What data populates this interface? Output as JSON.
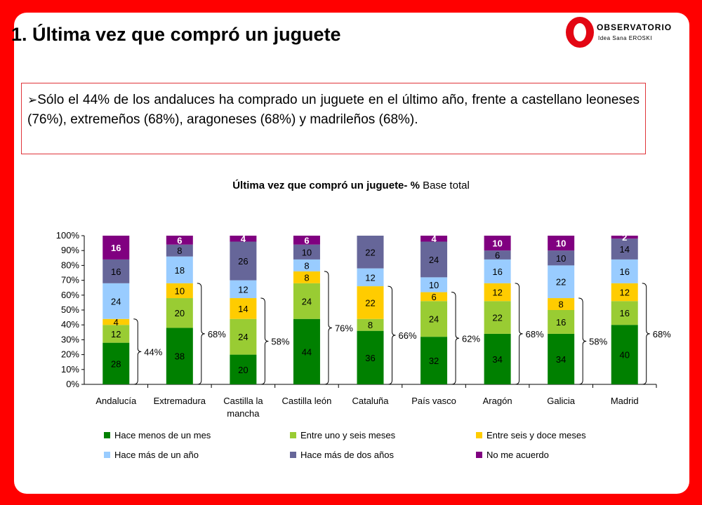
{
  "slide": {
    "title": "1. Última vez que compró un juguete",
    "logo": {
      "name": "OBSERVATORIO",
      "sub": "Idea Sana EROSKI"
    },
    "bullet_text": "Sólo el 44% de los andaluces ha comprado un juguete en el último año, frente a castellano leoneses (76%), extremeños (68%), aragoneses (68%) y madrileños (68%).",
    "chart_title_bold": "Última vez que compró un juguete- %",
    "chart_title_rest": " Base total"
  },
  "colors": {
    "background": "#ff0000",
    "accent": "#e30613",
    "series": [
      "#008000",
      "#99cc33",
      "#ffcc00",
      "#99ccff",
      "#666699",
      "#800080"
    ]
  },
  "chart_data": {
    "type": "bar",
    "stacked": true,
    "title": "Última vez que compró un juguete- % Base total",
    "ylim": [
      0,
      100
    ],
    "yticks": [
      "0%",
      "10%",
      "20%",
      "30%",
      "40%",
      "50%",
      "60%",
      "70%",
      "80%",
      "90%",
      "100%"
    ],
    "categories": [
      [
        "Andalucía"
      ],
      [
        "Extremadura"
      ],
      [
        "Castilla la",
        "mancha"
      ],
      [
        "Castilla león"
      ],
      [
        "Cataluña"
      ],
      [
        "País vasco"
      ],
      [
        "Aragón"
      ],
      [
        "Galicia"
      ],
      [
        "Madrid"
      ]
    ],
    "series": [
      {
        "name": "Hace menos de un mes",
        "values": [
          28,
          38,
          20,
          44,
          36,
          32,
          34,
          34,
          40
        ]
      },
      {
        "name": "Entre uno y seis meses",
        "values": [
          12,
          20,
          24,
          24,
          8,
          24,
          22,
          16,
          16
        ]
      },
      {
        "name": "Entre seis y doce meses",
        "values": [
          4,
          10,
          14,
          8,
          22,
          6,
          12,
          8,
          12
        ]
      },
      {
        "name": "Hace más de un año",
        "values": [
          24,
          18,
          12,
          8,
          12,
          10,
          16,
          22,
          16
        ]
      },
      {
        "name": "Hace más de dos años",
        "values": [
          16,
          8,
          26,
          10,
          22,
          24,
          6,
          10,
          14
        ]
      },
      {
        "name": "No me acuerdo",
        "values": [
          16,
          6,
          4,
          6,
          0,
          4,
          10,
          10,
          2
        ]
      }
    ],
    "annotations": [
      "44%",
      "68%",
      "58%",
      "76%",
      "66%",
      "62%",
      "68%",
      "58%",
      "68%"
    ],
    "legend_placement": "bottom",
    "grid": false
  }
}
